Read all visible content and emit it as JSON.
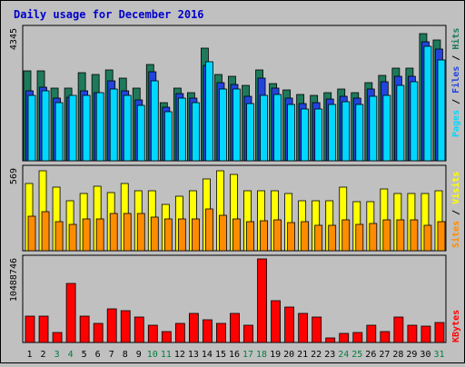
{
  "title": "Daily usage for December 2016",
  "colors": {
    "background": "#c0c0c0",
    "plot_bg": "#c0c0c0",
    "title": "#0000cc",
    "hits": "#1e7a5a",
    "files": "#2244dd",
    "pages": "#00d8ff",
    "visits": "#ffff00",
    "sites": "#ff8c00",
    "kbytes": "#ff0000",
    "weekend_label": "#008040",
    "weekday_label": "#000000"
  },
  "chart_data": [
    {
      "type": "bar",
      "panel": "top",
      "ymax_label": "4345",
      "ylim": [
        0,
        4345
      ],
      "categories": [
        "1",
        "2",
        "3",
        "4",
        "5",
        "6",
        "7",
        "8",
        "9",
        "10",
        "11",
        "12",
        "13",
        "14",
        "15",
        "16",
        "17",
        "18",
        "19",
        "20",
        "21",
        "22",
        "23",
        "24",
        "25",
        "26",
        "27",
        "28",
        "29",
        "30",
        "31"
      ],
      "weekend_days": [
        "3",
        "4",
        "10",
        "11",
        "17",
        "18",
        "24",
        "25",
        "31"
      ],
      "legend": [
        "Pages",
        "Files",
        "Hits"
      ],
      "series": [
        {
          "name": "Hits",
          "values": [
            2960,
            2960,
            2400,
            2400,
            2900,
            2860,
            3000,
            2720,
            2400,
            3180,
            1930,
            2400,
            2260,
            3720,
            2840,
            2780,
            2500,
            3000,
            2560,
            2330,
            2180,
            2160,
            2260,
            2360,
            2260,
            2570,
            2830,
            3050,
            3050,
            4200,
            4000
          ]
        },
        {
          "name": "Files",
          "values": [
            2300,
            2420,
            2060,
            2100,
            2300,
            2250,
            2650,
            2300,
            2000,
            2930,
            1760,
            2230,
            2060,
            3140,
            2580,
            2520,
            2130,
            2720,
            2400,
            2070,
            1900,
            1930,
            2030,
            2130,
            2060,
            2370,
            2620,
            2780,
            2780,
            3940,
            3700
          ]
        },
        {
          "name": "Pages",
          "values": [
            2160,
            2300,
            1920,
            2160,
            2160,
            2240,
            2360,
            2160,
            1820,
            2630,
            1620,
            2060,
            1920,
            3280,
            2360,
            2360,
            1890,
            2160,
            2200,
            1860,
            1720,
            1720,
            1860,
            1960,
            1860,
            2130,
            2160,
            2500,
            2620,
            3780,
            3320
          ]
        }
      ]
    },
    {
      "type": "bar",
      "panel": "middle",
      "ymax_label": "569",
      "ylim": [
        0,
        569
      ],
      "categories": [
        "1",
        "2",
        "3",
        "4",
        "5",
        "6",
        "7",
        "8",
        "9",
        "10",
        "11",
        "12",
        "13",
        "14",
        "15",
        "16",
        "17",
        "18",
        "19",
        "20",
        "21",
        "22",
        "23",
        "24",
        "25",
        "26",
        "27",
        "28",
        "29",
        "30",
        "31"
      ],
      "legend": [
        "Sites",
        "Visits"
      ],
      "series": [
        {
          "name": "Visits",
          "values": [
            470,
            555,
            440,
            350,
            400,
            450,
            405,
            470,
            415,
            415,
            325,
            380,
            420,
            500,
            555,
            530,
            420,
            420,
            420,
            400,
            350,
            350,
            350,
            440,
            340,
            340,
            430,
            400,
            400,
            400,
            415
          ]
        },
        {
          "name": "Sites",
          "values": [
            240,
            270,
            205,
            185,
            220,
            220,
            260,
            260,
            260,
            235,
            220,
            220,
            220,
            290,
            245,
            220,
            200,
            210,
            215,
            195,
            200,
            180,
            180,
            215,
            185,
            190,
            215,
            215,
            215,
            180,
            200
          ]
        }
      ]
    },
    {
      "type": "bar",
      "panel": "bottom",
      "ymax_label": "10488746",
      "ylim": [
        0,
        10488746
      ],
      "categories": [
        "1",
        "2",
        "3",
        "4",
        "5",
        "6",
        "7",
        "8",
        "9",
        "10",
        "11",
        "12",
        "13",
        "14",
        "15",
        "16",
        "17",
        "18",
        "19",
        "20",
        "21",
        "22",
        "23",
        "24",
        "25",
        "26",
        "27",
        "28",
        "29",
        "30",
        "31"
      ],
      "legend": [
        "KBytes"
      ],
      "series": [
        {
          "name": "KBytes",
          "values": [
            3300,
            3300,
            1300,
            7400,
            3300,
            2400,
            4200,
            4000,
            3200,
            2200,
            1400,
            2400,
            3700,
            2800,
            2400,
            3700,
            2200,
            10488,
            5200,
            4500,
            3700,
            3200,
            600,
            1100,
            1300,
            2200,
            1400,
            3200,
            2200,
            2000,
            2500
          ]
        }
      ]
    }
  ]
}
